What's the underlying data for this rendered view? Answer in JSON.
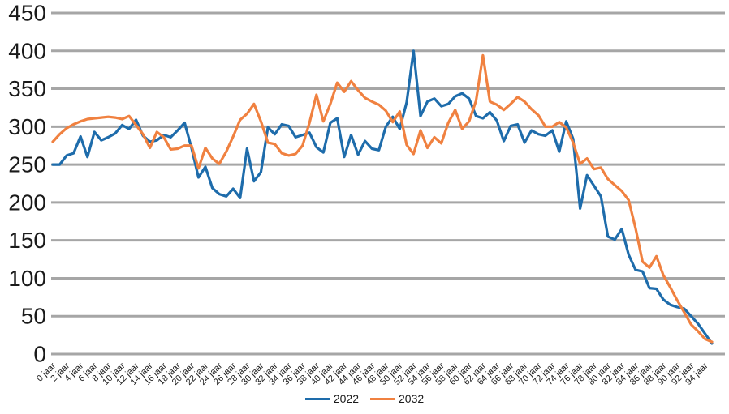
{
  "chart_data": {
    "type": "line",
    "title": "",
    "xlabel": "",
    "ylabel": "",
    "x_unit": "jaar",
    "ages": "0-95 (one data point per year of age; x tick labels shown every 2 years)",
    "x_tick_labels": [
      "0 jaar",
      "2 jaar",
      "4 jaar",
      "6 jaar",
      "8 jaar",
      "10 jaar",
      "12 jaar",
      "14 jaar",
      "16 jaar",
      "18 jaar",
      "20 jaar",
      "22 jaar",
      "24 jaar",
      "26 jaar",
      "28 jaar",
      "30 jaar",
      "32 jaar",
      "34 jaar",
      "36 jaar",
      "38 jaar",
      "40 jaar",
      "42 jaar",
      "44 jaar",
      "46 jaar",
      "48 jaar",
      "50 jaar",
      "52 jaar",
      "54 jaar",
      "56 jaar",
      "58 jaar",
      "60 jaar",
      "62 jaar",
      "64 jaar",
      "66 jaar",
      "68 jaar",
      "70 jaar",
      "72 jaar",
      "74 jaar",
      "76 jaar",
      "78 jaar",
      "80 jaar",
      "82 jaar",
      "84 jaar",
      "86 jaar",
      "88 jaar",
      "90 jaar",
      "92 jaar",
      "94 jaar"
    ],
    "y_ticks": [
      0,
      50,
      100,
      150,
      200,
      250,
      300,
      350,
      400,
      450
    ],
    "ylim": [
      0,
      450
    ],
    "grid": "horizontal",
    "gridline_color": "#a6a6a6",
    "axis_text_color": "#1a1a1a",
    "legend_position": "bottom-center",
    "series": [
      {
        "name": "2022",
        "color": "#1e6cab",
        "values": [
          250,
          250,
          262,
          265,
          287,
          260,
          293,
          282,
          286,
          291,
          302,
          297,
          309,
          288,
          280,
          282,
          289,
          286,
          295,
          305,
          272,
          233,
          247,
          219,
          211,
          208,
          218,
          206,
          271,
          228,
          240,
          299,
          290,
          303,
          301,
          286,
          289,
          292,
          273,
          266,
          305,
          311,
          260,
          289,
          263,
          281,
          271,
          269,
          300,
          313,
          297,
          332,
          400,
          314,
          333,
          337,
          327,
          330,
          340,
          344,
          337,
          314,
          311,
          319,
          308,
          281,
          301,
          303,
          279,
          295,
          290,
          288,
          295,
          267,
          307,
          284,
          192,
          236,
          222,
          208,
          155,
          151,
          165,
          131,
          111,
          109,
          87,
          86,
          72,
          65,
          62,
          60,
          50,
          40,
          27,
          14
        ]
      },
      {
        "name": "2032",
        "color": "#f08140",
        "values": [
          280,
          290,
          298,
          303,
          307,
          310,
          311,
          312,
          313,
          312,
          310,
          314,
          302,
          290,
          272,
          293,
          286,
          270,
          271,
          275,
          275,
          245,
          272,
          258,
          251,
          267,
          287,
          309,
          317,
          330,
          307,
          279,
          277,
          265,
          262,
          264,
          275,
          305,
          342,
          307,
          330,
          358,
          346,
          360,
          348,
          338,
          333,
          329,
          321,
          306,
          320,
          276,
          264,
          295,
          272,
          286,
          278,
          305,
          322,
          297,
          307,
          334,
          394,
          333,
          329,
          322,
          330,
          339,
          333,
          323,
          315,
          300,
          300,
          306,
          299,
          279,
          251,
          258,
          244,
          246,
          231,
          223,
          215,
          203,
          166,
          122,
          114,
          129,
          104,
          88,
          71,
          55,
          39,
          30,
          20,
          16
        ]
      }
    ]
  },
  "legend": {
    "series_2022_label": "2022",
    "series_2032_label": "2032"
  }
}
